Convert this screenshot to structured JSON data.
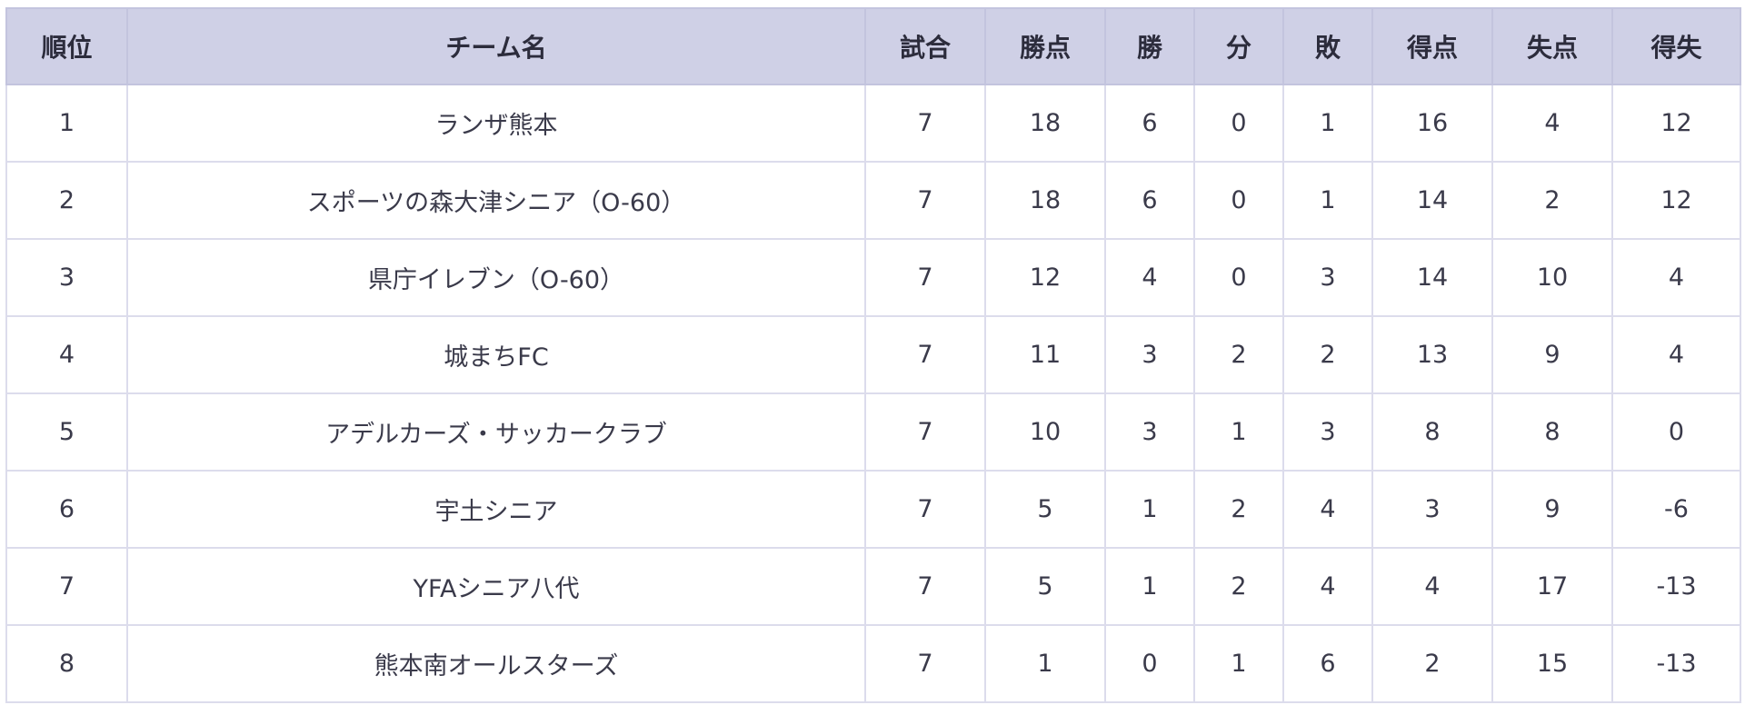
{
  "columns": [
    "順位",
    "チーム名",
    "試合",
    "勝点",
    "勝",
    "分",
    "敗",
    "得点",
    "失点",
    "得失"
  ],
  "rows": [
    [
      "1",
      "ランザ熊本",
      "7",
      "18",
      "6",
      "0",
      "1",
      "16",
      "4",
      "12"
    ],
    [
      "2",
      "スポーツの森大津シニア（O-60）",
      "7",
      "18",
      "6",
      "0",
      "1",
      "14",
      "2",
      "12"
    ],
    [
      "3",
      "県庁イレブン（O-60）",
      "7",
      "12",
      "4",
      "0",
      "3",
      "14",
      "10",
      "4"
    ],
    [
      "4",
      "城まちFC",
      "7",
      "11",
      "3",
      "2",
      "2",
      "13",
      "9",
      "4"
    ],
    [
      "5",
      "アデルカーズ・サッカークラブ",
      "7",
      "10",
      "3",
      "1",
      "3",
      "8",
      "8",
      "0"
    ],
    [
      "6",
      "宇土シニア",
      "7",
      "5",
      "1",
      "2",
      "4",
      "3",
      "9",
      "-6"
    ],
    [
      "7",
      "YFAシニア八代",
      "7",
      "5",
      "1",
      "2",
      "4",
      "4",
      "17",
      "-13"
    ],
    [
      "8",
      "熊本南オールスターズ",
      "7",
      "1",
      "0",
      "1",
      "6",
      "2",
      "15",
      "-13"
    ]
  ],
  "colors": {
    "header_bg": "#cfd0e6",
    "border": "#dcdcec",
    "text": "#3a3a4a"
  }
}
